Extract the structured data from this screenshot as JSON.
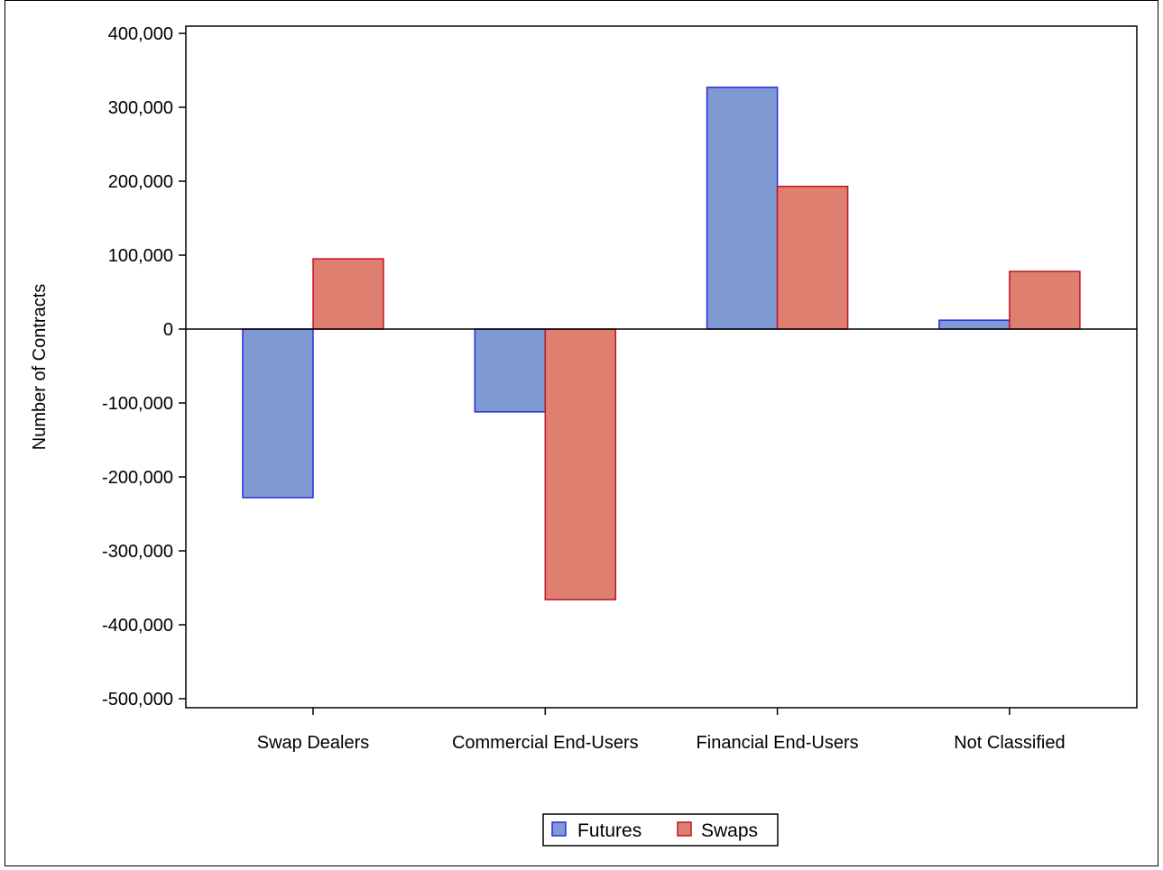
{
  "chart_data": {
    "type": "bar",
    "title": "",
    "xlabel": "",
    "ylabel": "Number of Contracts",
    "categories": [
      "Swap Dealers",
      "Commercial End-Users",
      "Financial End-Users",
      "Not Classified"
    ],
    "series": [
      {
        "name": "Futures",
        "values": [
          -228000,
          -112000,
          327000,
          12000
        ],
        "color": "#7f9ad2",
        "stroke": "#2a2ae0"
      },
      {
        "name": "Swaps",
        "values": [
          95000,
          -366000,
          193000,
          78000
        ],
        "color": "#de7f6f",
        "stroke": "#c0142a"
      }
    ],
    "ylim": [
      -500000,
      400000
    ],
    "yticks": [
      400000,
      300000,
      200000,
      100000,
      0,
      -100000,
      -200000,
      -300000,
      -400000,
      -500000
    ],
    "ytick_labels": [
      "400,000",
      "300,000",
      "200,000",
      "100,000",
      "0",
      "-100,000",
      "-200,000",
      "-300,000",
      "-400,000",
      "-500,000"
    ],
    "grid": false,
    "legend": "bottom-center"
  }
}
